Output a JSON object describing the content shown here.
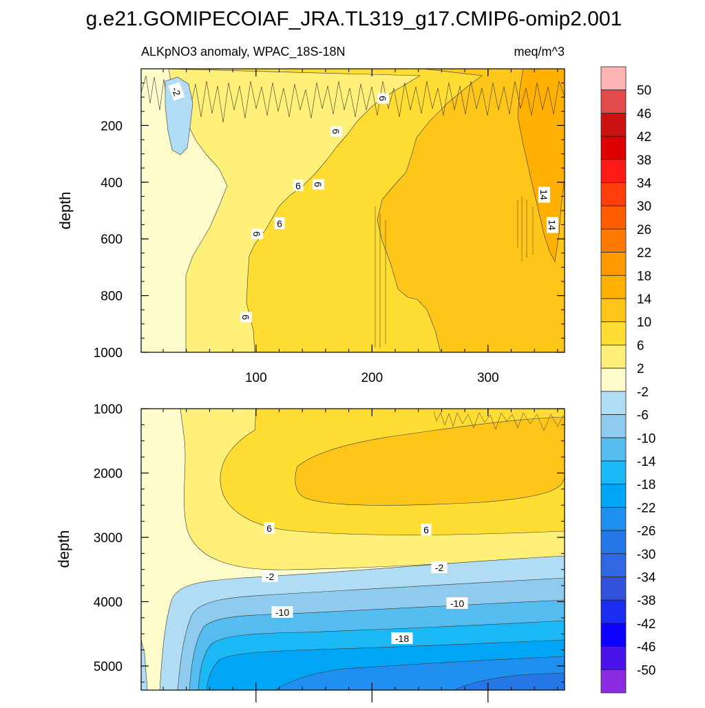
{
  "chart_data": {
    "type": "heatmap",
    "title": "g.e21.GOMIPECOIAF_JRA.TL319_g17.CMIP6-omip2.001",
    "variable_label": "ALKpNO3 anomaly, WPAC_18S-18N",
    "units_label": "meq/m^3",
    "x_ticks": [
      100,
      200,
      300
    ],
    "x_range": [
      1,
      366
    ],
    "colorbar": {
      "levels": [
        50,
        46,
        42,
        38,
        34,
        30,
        26,
        22,
        18,
        14,
        10,
        6,
        2,
        -2,
        -6,
        -10,
        -14,
        -18,
        -22,
        -26,
        -30,
        -34,
        -38,
        -42,
        -46,
        -50
      ],
      "colors": [
        "#ffb3b3",
        "#e34b4b",
        "#cc1111",
        "#dd0000",
        "#ff1a1a",
        "#ff3d0d",
        "#ff5c00",
        "#ff7a00",
        "#ff9900",
        "#ffb000",
        "#ffc61a",
        "#ffdd33",
        "#fff079",
        "#fffccc",
        "#b0dcf4",
        "#8ecbee",
        "#55bcf0",
        "#1ab8f5",
        "#00a6f5",
        "#1f8ff0",
        "#2577e8",
        "#2f68e0",
        "#3252dc",
        "#1a2cf0",
        "#0c00ff",
        "#4a14e8",
        "#8a2be2"
      ]
    },
    "panels": [
      {
        "name": "upper",
        "ylabel": "depth",
        "y_ticks": [
          200,
          400,
          600,
          800,
          1000
        ],
        "y_range": [
          0,
          1000
        ],
        "contour_labels": [
          "-2",
          "6",
          "6",
          "6",
          "6",
          "6",
          "6",
          "6",
          "14",
          "14"
        ]
      },
      {
        "name": "lower",
        "ylabel": "depth",
        "y_ticks": [
          1000,
          2000,
          3000,
          4000,
          5000
        ],
        "y_range": [
          1000,
          5375
        ],
        "contour_labels": [
          "6",
          "6",
          "-2",
          "-2",
          "-10",
          "-10",
          "-18"
        ]
      }
    ]
  }
}
